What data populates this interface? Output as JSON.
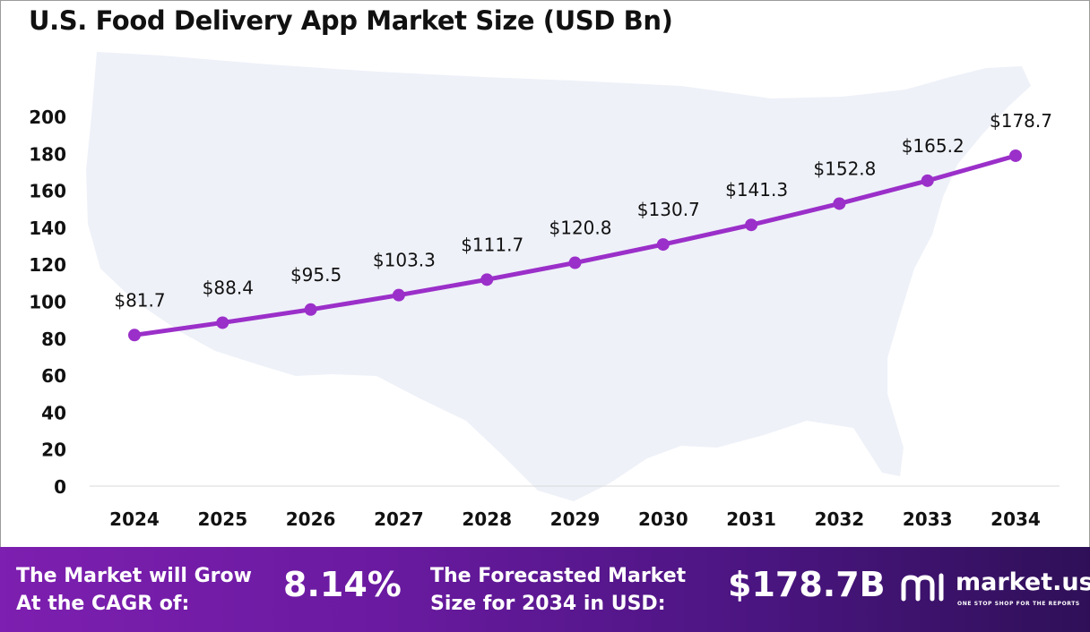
{
  "chart_data": {
    "type": "line",
    "title": "U.S. Food Delivery App Market Size (USD Bn)",
    "categories": [
      "2024",
      "2025",
      "2026",
      "2027",
      "2028",
      "2029",
      "2030",
      "2031",
      "2032",
      "2033",
      "2034"
    ],
    "values": [
      81.7,
      88.4,
      95.5,
      103.3,
      111.7,
      120.8,
      130.7,
      141.3,
      152.8,
      165.2,
      178.7
    ],
    "data_labels": [
      "$81.7",
      "$88.4",
      "$95.5",
      "$103.3",
      "$111.7",
      "$120.8",
      "$130.7",
      "$141.3",
      "$152.8",
      "$165.2",
      "$178.7"
    ],
    "yticks": [
      "0",
      "20",
      "40",
      "60",
      "80",
      "100",
      "120",
      "140",
      "160",
      "180",
      "200"
    ],
    "ylim": [
      0,
      200
    ],
    "xlabel": "",
    "ylabel": "",
    "grid": false,
    "line_color": "#9b2fc9"
  },
  "footer": {
    "cagr_label": "The Market will Grow At the CAGR of:",
    "cagr_value": "8.14%",
    "forecast_label": "The Forecasted Market Size for 2034 in USD:",
    "forecast_value": "$178.7B",
    "logo_name": "market.us",
    "logo_tagline": "ONE STOP SHOP FOR THE REPORTS"
  }
}
